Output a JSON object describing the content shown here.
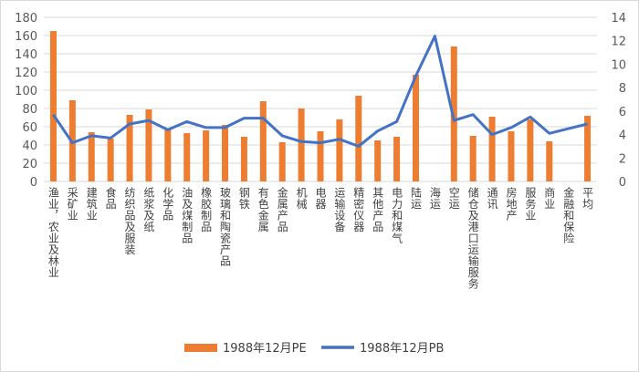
{
  "chart_data": {
    "type": "bar",
    "categories": [
      "渔业，农业及林业",
      "采矿业",
      "建筑业",
      "食品",
      "纺织品及服装",
      "纸浆及纸",
      "化学品",
      "油及煤制品",
      "橡胶制品",
      "玻璃和陶瓷产品",
      "钢铁",
      "有色金属",
      "金属产品",
      "机械",
      "电器",
      "运输设备",
      "精密仪器",
      "其他产品",
      "电力和煤气",
      "陆运",
      "海运",
      "空运",
      "储仓及港口运输服务",
      "通讯",
      "房地产",
      "服务业",
      "商业",
      "金融和保险",
      "平均"
    ],
    "series": [
      {
        "name": "1988年12月PE",
        "axis": "left",
        "color": "#ED7D31",
        "values": [
          165,
          89,
          54,
          47,
          73,
          79,
          57,
          53,
          56,
          62,
          49,
          88,
          43,
          80,
          55,
          68,
          94,
          45,
          49,
          117,
          null,
          148,
          50,
          71,
          55,
          68,
          44,
          null,
          72
        ]
      },
      {
        "name": "1988年12月PB",
        "axis": "right",
        "color": "#4472C4",
        "values": [
          5.7,
          3.3,
          3.9,
          3.7,
          4.9,
          5.2,
          4.4,
          5.1,
          4.6,
          4.6,
          5.4,
          5.4,
          3.9,
          3.4,
          3.3,
          3.6,
          3.0,
          4.3,
          5.1,
          9.0,
          12.4,
          5.2,
          5.7,
          4.0,
          4.6,
          5.5,
          4.1,
          4.5,
          4.9
        ]
      }
    ],
    "y_left": {
      "min": 0,
      "max": 180,
      "ticks": [
        "0",
        "20",
        "40",
        "60",
        "80",
        "100",
        "120",
        "140",
        "160",
        "180"
      ]
    },
    "y_right": {
      "min": 0,
      "max": 14,
      "ticks": [
        "0",
        "2",
        "4",
        "6",
        "8",
        "10",
        "12",
        "14"
      ]
    },
    "gridlines": true,
    "legend_position": "bottom"
  }
}
